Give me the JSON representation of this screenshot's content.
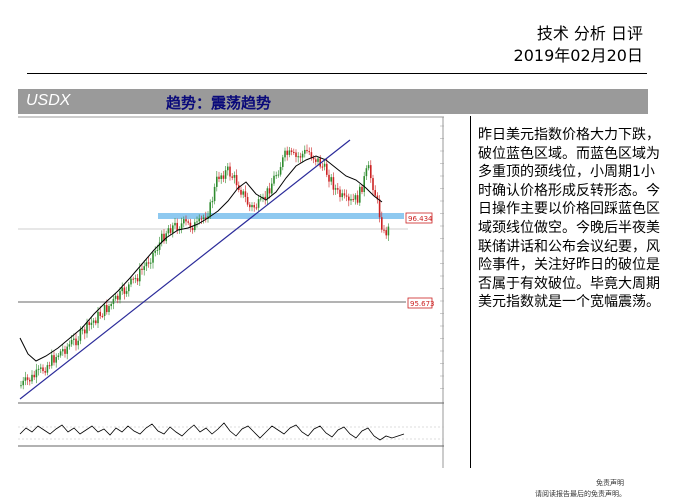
{
  "header": {
    "title": "技术 分析 日评",
    "date": "2019年02月20日"
  },
  "section": {
    "symbol": "USDX",
    "trend": "趋势：震荡趋势"
  },
  "chart": {
    "resistance_label": "96.434",
    "support_label": "95.673",
    "colors": {
      "blue_zone": "#8ec9f0",
      "trendline": "#2b2b9a",
      "up_candle": "#2e8b2e",
      "down_candle": "#cc2222",
      "moving_average": "#000000",
      "support_line": "#9a9a9a",
      "label_border": "#cc2222"
    }
  },
  "commentary": {
    "text": "昨日美元指数价格大力下跌，破位蓝色区域。而蓝色区域为多重顶的颈线位，小周期1小时确认价格形成反转形态。今日操作主要以价格回踩蓝色区域颈线位做空。今晚后半夜美联储讲话和公布会议纪要，风险事件，关注好昨日的破位是否属于有效破位。毕竟大周期美元指数就是一个宽幅震荡。"
  },
  "footer": {
    "disclaimer_title": "免责声明",
    "disclaimer_note": "请阅读报告最后的免责声明。"
  }
}
